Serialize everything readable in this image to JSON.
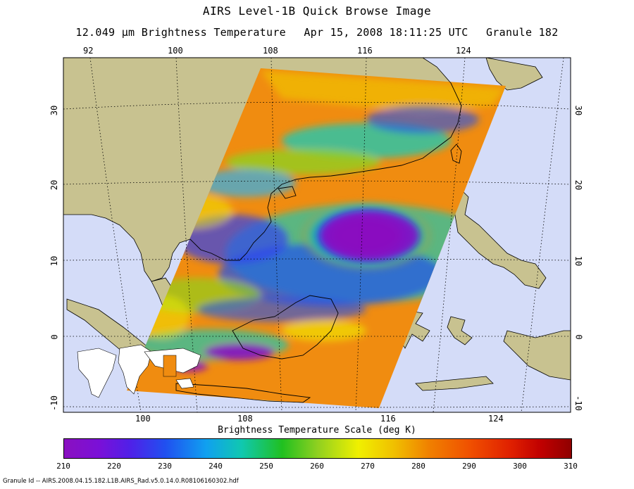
{
  "title": "AIRS Level-1B Quick Browse Image",
  "subtitle": {
    "channel": "12.049 μm Brightness Temperature",
    "datetime": "Apr 15, 2008 18:11:25 UTC",
    "granule": "Granule 182"
  },
  "map": {
    "top_lon_ticks": [
      "92",
      "100",
      "108",
      "116",
      "124"
    ],
    "bottom_lon_ticks": [
      "100",
      "108",
      "116",
      "124"
    ],
    "left_lat_ticks": [
      "30",
      "20",
      "10",
      "0",
      "-10"
    ],
    "right_lat_ticks": [
      "30",
      "20",
      "10",
      "0",
      "-10"
    ],
    "colors": {
      "ocean": "#d4dcf8",
      "land": "#c8c290",
      "coast": "#000000"
    }
  },
  "colorbar": {
    "title": "Brightness Temperature Scale (deg K)",
    "ticks": [
      "210",
      "220",
      "230",
      "240",
      "250",
      "260",
      "270",
      "280",
      "290",
      "300",
      "310"
    ]
  },
  "footer": "Granule Id -- AIRS.2008.04.15.182.L1B.AIRS_Rad.v5.0.14.0.R08106160302.hdf"
}
